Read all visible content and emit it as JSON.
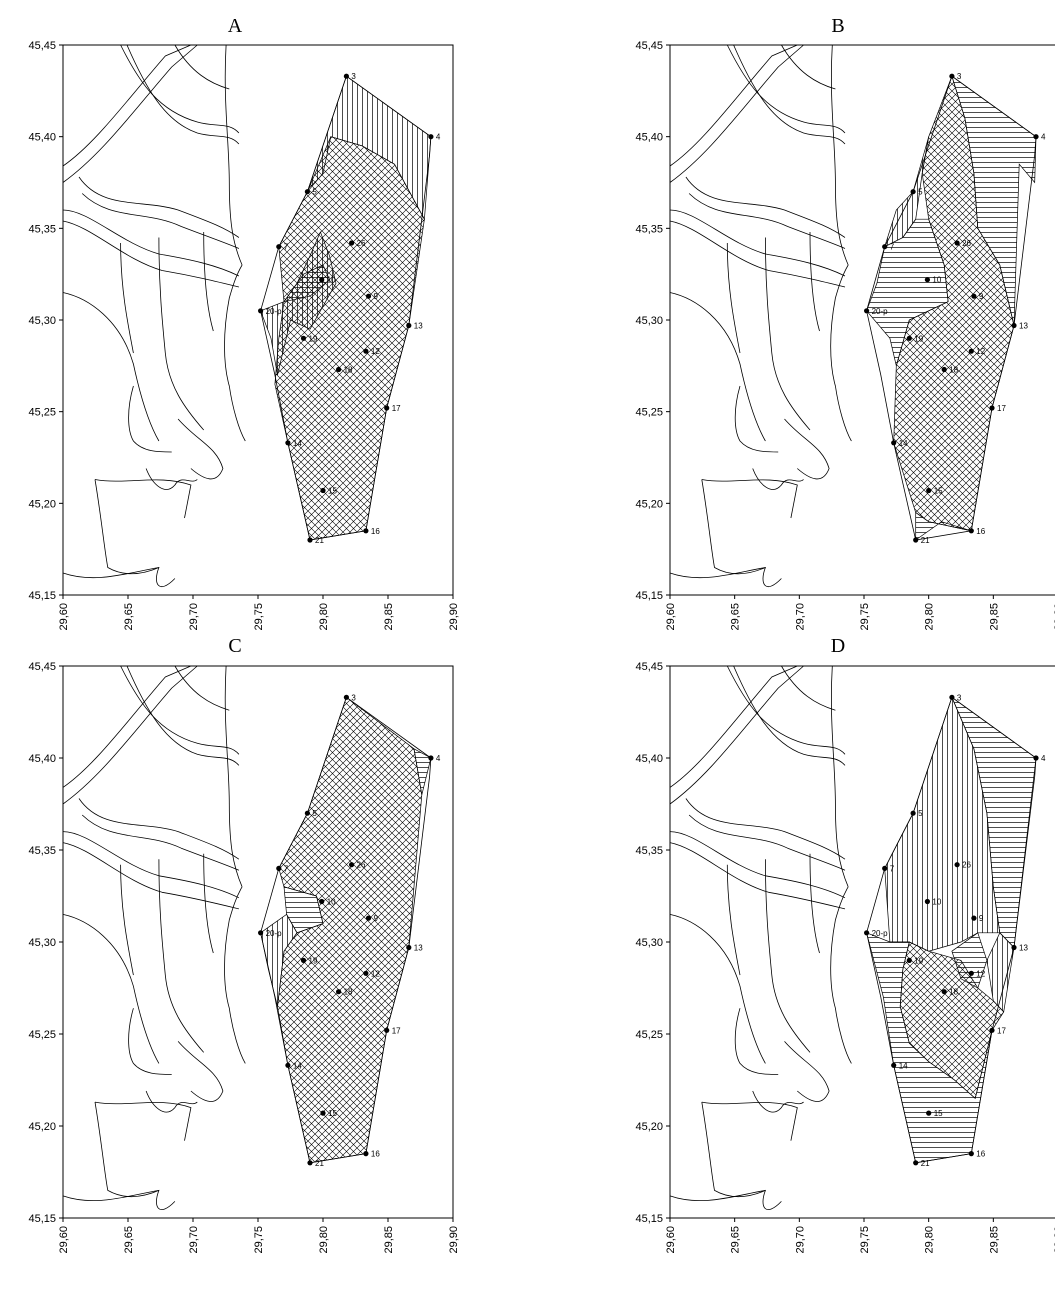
{
  "axes": {
    "x_ticks": [
      "29,60",
      "29,65",
      "29,70",
      "29,75",
      "29,80",
      "29,85",
      "29,90"
    ],
    "x_values": [
      29.6,
      29.65,
      29.7,
      29.75,
      29.8,
      29.85,
      29.9
    ],
    "y_ticks": [
      "45,45",
      "45,40",
      "45,35",
      "45,30",
      "45,25",
      "45,20",
      "45,15"
    ],
    "y_values": [
      45.45,
      45.4,
      45.35,
      45.3,
      45.25,
      45.2,
      45.15
    ],
    "x_range": [
      29.6,
      29.9
    ],
    "y_range": [
      45.15,
      45.45
    ]
  },
  "stations": [
    {
      "label": "3",
      "lon": 29.818,
      "lat": 45.433
    },
    {
      "label": "4",
      "lon": 29.883,
      "lat": 45.4
    },
    {
      "label": "5",
      "lon": 29.788,
      "lat": 45.37
    },
    {
      "label": "7",
      "lon": 29.766,
      "lat": 45.34
    },
    {
      "label": "26",
      "lon": 29.822,
      "lat": 45.342
    },
    {
      "label": "10",
      "lon": 29.799,
      "lat": 45.322
    },
    {
      "label": "9",
      "lon": 29.835,
      "lat": 45.313
    },
    {
      "label": "20-p",
      "lon": 29.752,
      "lat": 45.305
    },
    {
      "label": "13",
      "lon": 29.866,
      "lat": 45.297
    },
    {
      "label": "19",
      "lon": 29.785,
      "lat": 45.29
    },
    {
      "label": "12",
      "lon": 29.833,
      "lat": 45.283
    },
    {
      "label": "18",
      "lon": 29.812,
      "lat": 45.273
    },
    {
      "label": "17",
      "lon": 29.849,
      "lat": 45.252
    },
    {
      "label": "14",
      "lon": 29.773,
      "lat": 45.233
    },
    {
      "label": "15",
      "lon": 29.8,
      "lat": 45.207
    },
    {
      "label": "16",
      "lon": 29.833,
      "lat": 45.185
    },
    {
      "label": "21",
      "lon": 29.79,
      "lat": 45.18
    }
  ],
  "panels": [
    {
      "id": "A",
      "title": "A"
    },
    {
      "id": "B",
      "title": "B"
    },
    {
      "id": "C",
      "title": "C"
    },
    {
      "id": "D",
      "title": "D"
    }
  ]
}
